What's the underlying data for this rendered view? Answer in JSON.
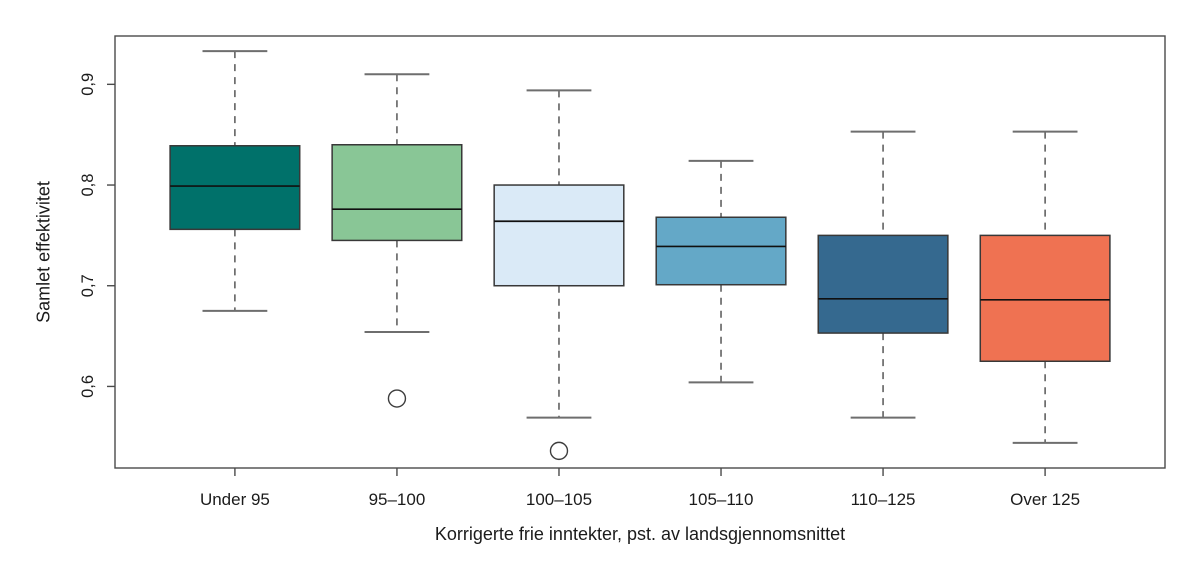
{
  "figure": {
    "background": "#ffffff"
  },
  "chart_data": {
    "type": "boxplot",
    "title": "",
    "xlabel": "Korrigerte frie inntekter, pst. av landsgjennomsnittet",
    "ylabel": "Samlet effektivitet",
    "ylim": [
      0.519,
      0.948
    ],
    "grid": false,
    "legend": "none",
    "decimal_separator": ",",
    "yticks": [
      {
        "value": 0.6,
        "label": "0,6"
      },
      {
        "value": 0.7,
        "label": "0,7"
      },
      {
        "value": 0.8,
        "label": "0,8"
      },
      {
        "value": 0.9,
        "label": "0,9"
      }
    ],
    "categories": [
      "Under 95",
      "95–100",
      "100–105",
      "105–110",
      "110–125",
      "Over 125"
    ],
    "series": [
      {
        "category": "Under 95",
        "color": "#00716A",
        "whisker_low": 0.675,
        "q1": 0.756,
        "median": 0.799,
        "q3": 0.839,
        "whisker_high": 0.933,
        "outliers": []
      },
      {
        "category": "95–100",
        "color": "#89C696",
        "whisker_low": 0.654,
        "q1": 0.745,
        "median": 0.776,
        "q3": 0.84,
        "whisker_high": 0.91,
        "outliers": [
          0.588
        ]
      },
      {
        "category": "100–105",
        "color": "#DAEAF7",
        "whisker_low": 0.569,
        "q1": 0.7,
        "median": 0.764,
        "q3": 0.8,
        "whisker_high": 0.894,
        "outliers": [
          0.536
        ]
      },
      {
        "category": "105–110",
        "color": "#64A8C7",
        "whisker_low": 0.604,
        "q1": 0.701,
        "median": 0.739,
        "q3": 0.768,
        "whisker_high": 0.824,
        "outliers": []
      },
      {
        "category": "110–125",
        "color": "#35698F",
        "whisker_low": 0.569,
        "q1": 0.653,
        "median": 0.687,
        "q3": 0.75,
        "whisker_high": 0.853,
        "outliers": []
      },
      {
        "category": "Over 125",
        "color": "#EF7252",
        "whisker_low": 0.544,
        "q1": 0.625,
        "median": 0.686,
        "q3": 0.75,
        "whisker_high": 0.853,
        "outliers": []
      }
    ]
  }
}
